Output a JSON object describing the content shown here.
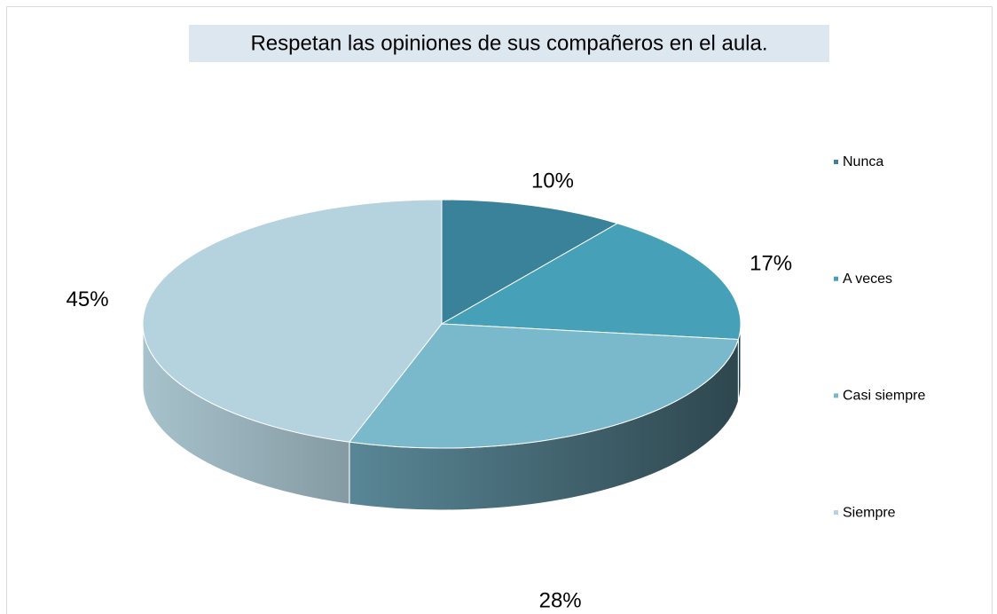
{
  "chart_data": {
    "type": "pie",
    "title": "Respetan las opiniones de sus compañeros en el aula.",
    "categories": [
      "Nunca",
      "A veces",
      "Casi siempre",
      "Siempre"
    ],
    "values": [
      10,
      17,
      28,
      45
    ],
    "value_labels": [
      "10%",
      "17%",
      "28%",
      "45%"
    ],
    "colors": [
      "#3a8299",
      "#45a0b8",
      "#7ab8cc",
      "#b5d3de"
    ],
    "legend": "right"
  }
}
